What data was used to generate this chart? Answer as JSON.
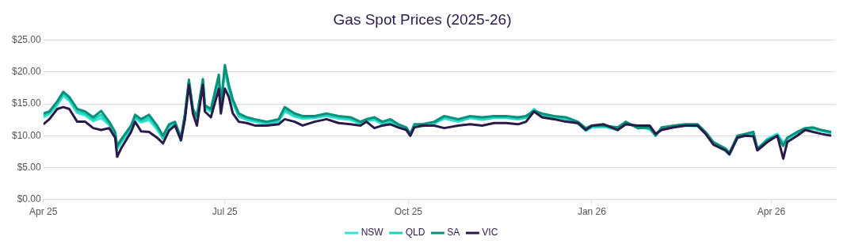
{
  "chart_data": {
    "type": "line",
    "title": "Gas Spot Prices (2025-26)",
    "x": [
      "2025-04-01",
      "2025-04-04",
      "2025-04-08",
      "2025-04-11",
      "2025-04-14",
      "2025-04-18",
      "2025-04-22",
      "2025-04-26",
      "2025-04-30",
      "2025-05-04",
      "2025-05-07",
      "2025-05-08",
      "2025-05-10",
      "2025-05-15",
      "2025-05-17",
      "2025-05-20",
      "2025-05-24",
      "2025-05-28",
      "2025-05-31",
      "2025-06-03",
      "2025-06-06",
      "2025-06-09",
      "2025-06-11",
      "2025-06-13",
      "2025-06-15",
      "2025-06-17",
      "2025-06-20",
      "2025-06-21",
      "2025-06-24",
      "2025-06-28",
      "2025-06-29",
      "2025-07-01",
      "2025-07-03",
      "2025-07-05",
      "2025-07-08",
      "2025-07-12",
      "2025-07-16",
      "2025-07-22",
      "2025-07-28",
      "2025-07-31",
      "2025-08-05",
      "2025-08-09",
      "2025-08-15",
      "2025-08-21",
      "2025-08-27",
      "2025-09-02",
      "2025-09-07",
      "2025-09-10",
      "2025-09-14",
      "2025-09-18",
      "2025-09-22",
      "2025-09-26",
      "2025-09-30",
      "2025-10-02",
      "2025-10-04",
      "2025-10-08",
      "2025-10-14",
      "2025-10-19",
      "2025-10-26",
      "2025-11-01",
      "2025-11-07",
      "2025-11-13",
      "2025-11-19",
      "2025-11-25",
      "2025-11-29",
      "2025-12-03",
      "2025-12-07",
      "2025-12-13",
      "2025-12-19",
      "2025-12-25",
      "2025-12-29",
      "2026-01-01",
      "2026-01-07",
      "2026-01-14",
      "2026-01-18",
      "2026-01-24",
      "2026-01-30",
      "2026-02-02",
      "2026-02-05",
      "2026-02-11",
      "2026-02-17",
      "2026-02-23",
      "2026-02-27",
      "2026-03-03",
      "2026-03-09",
      "2026-03-11",
      "2026-03-15",
      "2026-03-19",
      "2026-03-23",
      "2026-03-25",
      "2026-03-30",
      "2026-04-04",
      "2026-04-07",
      "2026-04-09",
      "2026-04-14",
      "2026-04-18",
      "2026-04-22",
      "2026-04-26",
      "2026-05-01"
    ],
    "series": [
      {
        "name": "NSW",
        "color": "#2ee6d6",
        "values": [
          12.9,
          13.4,
          14.8,
          16.3,
          15.5,
          13.6,
          13.2,
          12.3,
          12.8,
          11.7,
          10.1,
          7.9,
          8.9,
          11.0,
          12.7,
          12.1,
          12.5,
          11.0,
          9.5,
          11.3,
          11.8,
          9.2,
          13.0,
          18.2,
          13.8,
          12.6,
          18.3,
          14.3,
          13.8,
          18.9,
          14.2,
          20.3,
          17.2,
          15.1,
          13.0,
          12.5,
          12.2,
          11.8,
          12.2,
          13.8,
          13.0,
          12.7,
          12.8,
          13.1,
          12.7,
          12.5,
          11.9,
          12.3,
          12.5,
          11.8,
          12.2,
          11.4,
          11.0,
          10.0,
          11.5,
          11.5,
          11.9,
          12.7,
          12.2,
          12.8,
          12.5,
          12.8,
          12.8,
          12.6,
          12.8,
          14.2,
          13.2,
          12.8,
          12.5,
          11.9,
          10.8,
          11.3,
          11.4,
          10.9,
          11.8,
          11.5,
          11.0,
          10.2,
          11.0,
          11.4,
          11.6,
          11.5,
          10.4,
          8.7,
          7.6,
          7.0,
          9.6,
          10.2,
          10.3,
          7.8,
          9.5,
          10.3,
          8.9,
          9.5,
          10.4,
          11.0,
          11.1,
          10.8,
          10.4
        ]
      },
      {
        "name": "QLD",
        "color": "#1fd1b8",
        "values": [
          13.2,
          13.6,
          15.1,
          16.6,
          15.8,
          13.9,
          13.5,
          12.6,
          13.3,
          11.9,
          10.3,
          8.1,
          9.1,
          11.3,
          13.0,
          12.3,
          12.9,
          11.3,
          9.7,
          11.5,
          12.0,
          9.4,
          13.2,
          18.5,
          14.0,
          12.8,
          18.6,
          14.5,
          14.0,
          19.2,
          14.5,
          20.7,
          17.6,
          15.4,
          13.2,
          12.7,
          12.4,
          12.0,
          12.4,
          14.1,
          13.2,
          12.9,
          12.9,
          13.3,
          12.9,
          12.7,
          12.0,
          12.4,
          12.7,
          12.0,
          12.4,
          11.6,
          11.1,
          10.1,
          11.6,
          11.6,
          12.0,
          12.9,
          12.4,
          12.9,
          12.7,
          12.9,
          12.9,
          12.7,
          12.9,
          14.0,
          13.3,
          12.9,
          12.7,
          12.0,
          11.0,
          11.4,
          11.5,
          11.1,
          12.0,
          11.4,
          11.1,
          10.1,
          11.1,
          11.5,
          11.7,
          11.6,
          10.5,
          8.8,
          7.8,
          7.1,
          9.8,
          10.2,
          10.4,
          7.9,
          9.4,
          10.1,
          8.6,
          9.6,
          10.5,
          11.1,
          11.2,
          10.8,
          10.5
        ]
      },
      {
        "name": "SA",
        "color": "#0a8f7a",
        "values": [
          13.5,
          13.8,
          15.4,
          16.9,
          16.1,
          14.2,
          13.8,
          12.9,
          13.9,
          12.2,
          10.6,
          8.4,
          9.4,
          11.6,
          13.3,
          12.6,
          13.3,
          11.6,
          10.0,
          11.8,
          12.2,
          9.7,
          13.5,
          18.8,
          14.2,
          13.1,
          18.9,
          14.8,
          14.2,
          19.6,
          14.8,
          21.1,
          18.0,
          15.7,
          13.5,
          12.9,
          12.6,
          12.2,
          12.6,
          14.5,
          13.5,
          13.1,
          13.1,
          13.5,
          13.1,
          12.9,
          12.2,
          12.6,
          12.9,
          12.2,
          12.6,
          11.8,
          11.3,
          10.3,
          11.8,
          11.8,
          12.2,
          13.1,
          12.6,
          13.1,
          12.9,
          13.1,
          13.1,
          12.9,
          13.1,
          13.9,
          13.5,
          13.1,
          12.9,
          12.2,
          11.2,
          11.6,
          11.6,
          11.3,
          12.2,
          11.2,
          11.3,
          10.0,
          11.3,
          11.6,
          11.8,
          11.8,
          10.6,
          9.0,
          8.0,
          7.3,
          10.0,
          10.3,
          10.6,
          8.0,
          9.3,
          10.0,
          8.4,
          9.7,
          10.6,
          11.2,
          11.3,
          10.9,
          10.6
        ]
      },
      {
        "name": "VIC",
        "color": "#2a1a4a",
        "values": [
          11.8,
          12.6,
          14.2,
          14.5,
          14.2,
          12.2,
          12.2,
          11.2,
          10.9,
          11.2,
          9.7,
          6.7,
          8.0,
          10.6,
          12.2,
          10.7,
          10.6,
          9.7,
          8.8,
          10.8,
          11.6,
          9.3,
          12.6,
          18.0,
          13.5,
          11.6,
          18.0,
          13.8,
          12.9,
          17.4,
          13.5,
          17.4,
          16.1,
          13.5,
          12.2,
          12.0,
          11.6,
          11.6,
          11.8,
          12.6,
          12.2,
          11.6,
          12.2,
          12.6,
          12.0,
          11.8,
          11.6,
          12.2,
          11.2,
          11.6,
          11.8,
          11.3,
          10.9,
          10.0,
          11.3,
          11.6,
          11.6,
          11.2,
          11.6,
          11.8,
          11.6,
          12.0,
          12.0,
          11.8,
          12.2,
          13.8,
          12.9,
          12.6,
          12.2,
          12.0,
          10.9,
          11.6,
          11.8,
          10.9,
          11.8,
          11.6,
          11.6,
          10.3,
          10.9,
          11.3,
          11.6,
          11.6,
          10.3,
          8.6,
          7.7,
          7.1,
          9.7,
          10.0,
          9.9,
          7.7,
          9.0,
          10.0,
          6.4,
          9.0,
          10.0,
          10.9,
          10.6,
          10.3,
          10.0
        ]
      }
    ],
    "xlim": [
      "2025-04-01",
      "2026-05-03"
    ],
    "xticks": [
      {
        "value": "2025-04-01",
        "label": "Apr 25"
      },
      {
        "value": "2025-07-01",
        "label": "Jul 25"
      },
      {
        "value": "2025-10-01",
        "label": "Oct 25"
      },
      {
        "value": "2026-01-01",
        "label": "Jan 26"
      },
      {
        "value": "2026-04-01",
        "label": "Apr 26"
      }
    ],
    "ylim": [
      0,
      25
    ],
    "yticks": [
      {
        "value": 0,
        "label": "$0.00"
      },
      {
        "value": 5,
        "label": "$5.00"
      },
      {
        "value": 10,
        "label": "$10.00"
      },
      {
        "value": 15,
        "label": "$15.00"
      },
      {
        "value": 20,
        "label": "$20.00"
      },
      {
        "value": 25,
        "label": "$25.00"
      }
    ],
    "grid": "y",
    "legend": "bottom",
    "marker": "none",
    "line_style": "solid"
  }
}
